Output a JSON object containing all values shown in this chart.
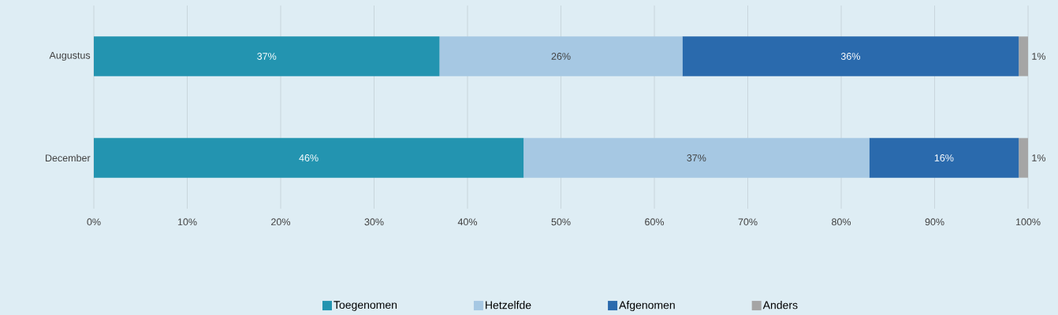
{
  "chart_data": {
    "type": "bar",
    "orientation": "horizontal",
    "stacked": true,
    "categories": [
      "Augustus",
      "December"
    ],
    "series": [
      {
        "name": "Toegenomen",
        "color": "#2394b0",
        "values": [
          37,
          46
        ],
        "value_labels": [
          "37%",
          "46%"
        ]
      },
      {
        "name": "Hetzelfde",
        "color": "#a6c8e3",
        "values": [
          26,
          37
        ],
        "value_labels": [
          "26%",
          "37%"
        ]
      },
      {
        "name": "Afgenomen",
        "color": "#2a6aad",
        "values": [
          36,
          16
        ],
        "value_labels": [
          "36%",
          "16%"
        ]
      },
      {
        "name": "Anders",
        "color": "#a5a5a5",
        "values": [
          1,
          1
        ],
        "value_labels": [
          "1%",
          "1%"
        ]
      }
    ],
    "xlim": [
      0,
      100
    ],
    "xticks": [
      {
        "value": 0,
        "label": "0%"
      },
      {
        "value": 10,
        "label": "10%"
      },
      {
        "value": 20,
        "label": "20%"
      },
      {
        "value": 30,
        "label": "30%"
      },
      {
        "value": 40,
        "label": "40%"
      },
      {
        "value": 50,
        "label": "50%"
      },
      {
        "value": 60,
        "label": "60%"
      },
      {
        "value": 70,
        "label": "70%"
      },
      {
        "value": 80,
        "label": "80%"
      },
      {
        "value": 90,
        "label": "90%"
      },
      {
        "value": 100,
        "label": "100%"
      }
    ],
    "grid": "x",
    "legend": "bottom"
  }
}
